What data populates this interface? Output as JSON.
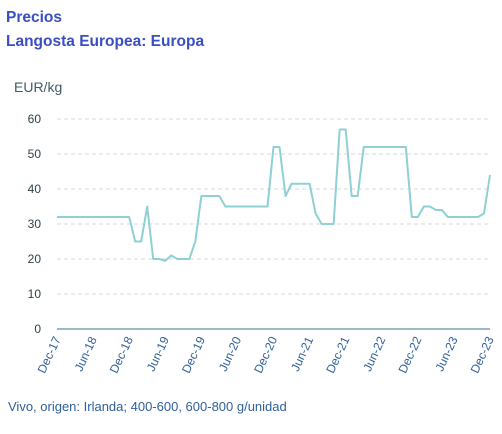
{
  "header": {
    "title": "Precios",
    "subtitle": "Langosta Europea: Europa"
  },
  "caption": "Vivo, origen: Irlanda; 400-600, 600-800 g/unidad",
  "colors": {
    "title": "#3a4ec2",
    "line": "#8ed0d4",
    "grid": "#d0d8e0",
    "axis": "#3a6f8f",
    "caption": "#2f5f9a"
  },
  "chart_data": {
    "type": "line",
    "title": "Precios",
    "subtitle": "Langosta Europea: Europa",
    "ylabel": "EUR/kg",
    "xlabel": "",
    "ylim": [
      0,
      60
    ],
    "yticks": [
      0,
      10,
      20,
      30,
      40,
      50,
      60
    ],
    "xticks": [
      "Dec-17",
      "Jun-18",
      "Dec-18",
      "Jun-19",
      "Dec-19",
      "Jun-20",
      "Dec-20",
      "Jun-21",
      "Dec-21",
      "Jun-22",
      "Dec-22",
      "Jun-23",
      "Dec-23"
    ],
    "grid": "horizontal",
    "series": [
      {
        "x": [
          "2017-12",
          "2018-01",
          "2018-02",
          "2018-03",
          "2018-04",
          "2018-05",
          "2018-06",
          "2018-07",
          "2018-08",
          "2018-09",
          "2018-10",
          "2018-11",
          "2018-12",
          "2019-01",
          "2019-02",
          "2019-03",
          "2019-04",
          "2019-05",
          "2019-06",
          "2019-07",
          "2019-08",
          "2019-09",
          "2019-10",
          "2019-11",
          "2019-12",
          "2020-01",
          "2020-02",
          "2020-03",
          "2020-04",
          "2020-05",
          "2020-06",
          "2020-07",
          "2020-08",
          "2020-09",
          "2020-10",
          "2020-11",
          "2020-12",
          "2021-01",
          "2021-02",
          "2021-03",
          "2021-04",
          "2021-05",
          "2021-06",
          "2021-07",
          "2021-08",
          "2021-09",
          "2021-10",
          "2021-11",
          "2021-12",
          "2022-01",
          "2022-02",
          "2022-03",
          "2022-04",
          "2022-05",
          "2022-06",
          "2022-07",
          "2022-08",
          "2022-09",
          "2022-10",
          "2022-11",
          "2022-12",
          "2023-01",
          "2023-02",
          "2023-03",
          "2023-04",
          "2023-05",
          "2023-06",
          "2023-07",
          "2023-08",
          "2023-09",
          "2023-10",
          "2023-11",
          "2023-12"
        ],
        "values": [
          32,
          32,
          32,
          32,
          32,
          32,
          32,
          32,
          32,
          32,
          32,
          32,
          32,
          25,
          25,
          35,
          20,
          20,
          19.5,
          21,
          20,
          20,
          20,
          25,
          38,
          38,
          38,
          38,
          35,
          35,
          35,
          35,
          35,
          35,
          35,
          35,
          52,
          52,
          38,
          41.5,
          41.5,
          41.5,
          41.5,
          33,
          30,
          30,
          30,
          57,
          57,
          38,
          38,
          52,
          52,
          52,
          52,
          52,
          52,
          52,
          52,
          32,
          32,
          35,
          35,
          34,
          34,
          32,
          32,
          32,
          32,
          32,
          32,
          33,
          44
        ]
      }
    ]
  }
}
